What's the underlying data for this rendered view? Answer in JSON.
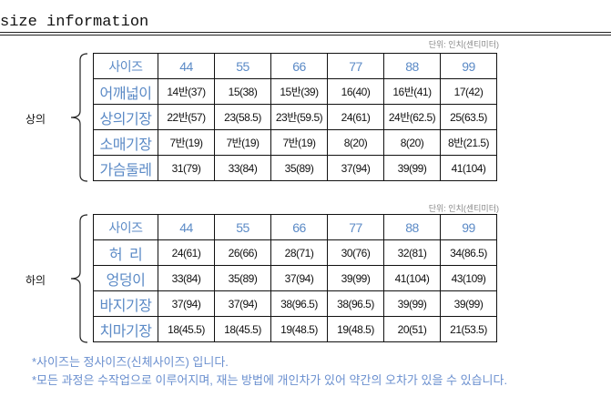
{
  "title": "size information",
  "unit": "단위: 인치(센티미터)",
  "sizes": [
    "44",
    "55",
    "66",
    "77",
    "88",
    "99"
  ],
  "top": {
    "group": "상의",
    "header": "사이즈",
    "rows": [
      {
        "label": "어깨넓이",
        "values": [
          "14반(37)",
          "15(38)",
          "15반(39)",
          "16(40)",
          "16반(41)",
          "17(42)"
        ]
      },
      {
        "label": "상의기장",
        "values": [
          "22반(57)",
          "23(58.5)",
          "23반(59.5)",
          "24(61)",
          "24반(62.5)",
          "25(63.5)"
        ]
      },
      {
        "label": "소매기장",
        "values": [
          "7반(19)",
          "7반(19)",
          "7반(19)",
          "8(20)",
          "8(20)",
          "8반(21.5)"
        ]
      },
      {
        "label": "가슴둘레",
        "values": [
          "31(79)",
          "33(84)",
          "35(89)",
          "37(94)",
          "39(99)",
          "41(104)"
        ]
      }
    ]
  },
  "bottom": {
    "group": "하의",
    "header": "사이즈",
    "rows": [
      {
        "label": "허  리",
        "values": [
          "24(61)",
          "26(66)",
          "28(71)",
          "30(76)",
          "32(81)",
          "34(86.5)"
        ]
      },
      {
        "label": "엉덩이",
        "values": [
          "33(84)",
          "35(89)",
          "37(94)",
          "39(99)",
          "41(104)",
          "43(109)"
        ]
      },
      {
        "label": "바지기장",
        "values": [
          "37(94)",
          "37(94)",
          "38(96.5)",
          "38(96.5)",
          "39(99)",
          "39(99)"
        ]
      },
      {
        "label": "치마기장",
        "values": [
          "18(45.5)",
          "18(45.5)",
          "19(48.5)",
          "19(48.5)",
          "20(51)",
          "21(53.5)"
        ]
      }
    ]
  },
  "notes": [
    "*사이즈는 정사이즈(신체사이즈) 입니다.",
    "*모든 과정은 수작업으로 이루어지며,  재는 방법에 개인차가 있어 약간의 오차가 있을 수 있습니다."
  ]
}
